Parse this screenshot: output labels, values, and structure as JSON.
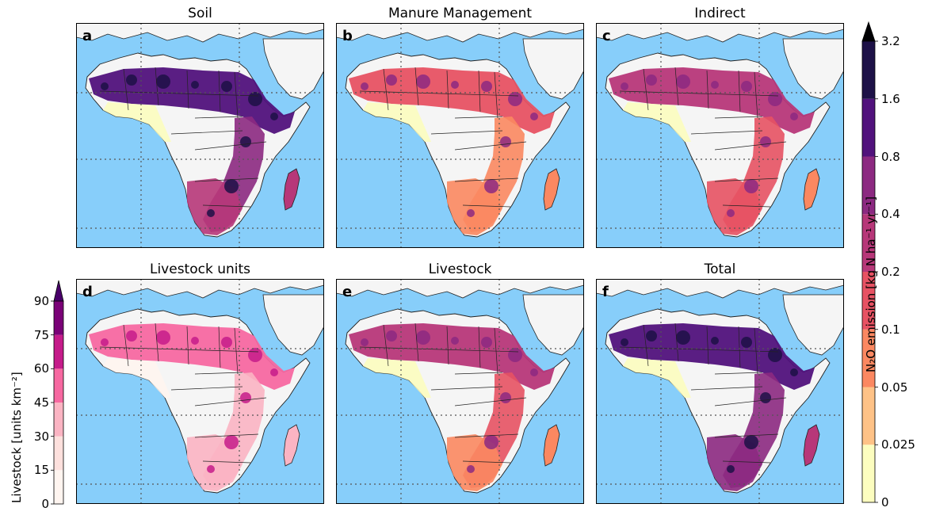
{
  "panels": [
    {
      "letter": "a",
      "title": "Soil",
      "intensity": 0.85
    },
    {
      "letter": "b",
      "title": "Manure Management",
      "intensity": 0.25
    },
    {
      "letter": "c",
      "title": "Indirect",
      "intensity": 0.5
    },
    {
      "letter": "d",
      "title": "Livestock units",
      "intensity": 0.5
    },
    {
      "letter": "e",
      "title": "Livestock",
      "intensity": 0.45
    },
    {
      "letter": "f",
      "title": "Total",
      "intensity": 1.0
    }
  ],
  "right_colorbar": {
    "label_html": "N₂O emission [kg N ha⁻¹ yr⁻¹]",
    "ticks": [
      "0",
      "0.025",
      "0.05",
      "0.1",
      "0.2",
      "0.4",
      "0.8",
      "1.6",
      "3.2"
    ],
    "colors": [
      "#fcfdbf",
      "#fec287",
      "#fb8861",
      "#e75263",
      "#b73779",
      "#8c2981",
      "#51127c",
      "#1d1147"
    ],
    "extend_color": "#000004"
  },
  "left_colorbar": {
    "label": "Livestock [units km⁻²]",
    "ticks": [
      "0",
      "15",
      "30",
      "45",
      "60",
      "75",
      "90"
    ],
    "colors": [
      "#fff5f0",
      "#fde0dd",
      "#fbb4c3",
      "#f768a1",
      "#c51b8a",
      "#7a0177"
    ],
    "extend_color": "#49006a"
  },
  "colors": {
    "ocean": "#87cefa",
    "land": "#f5f5f5"
  }
}
